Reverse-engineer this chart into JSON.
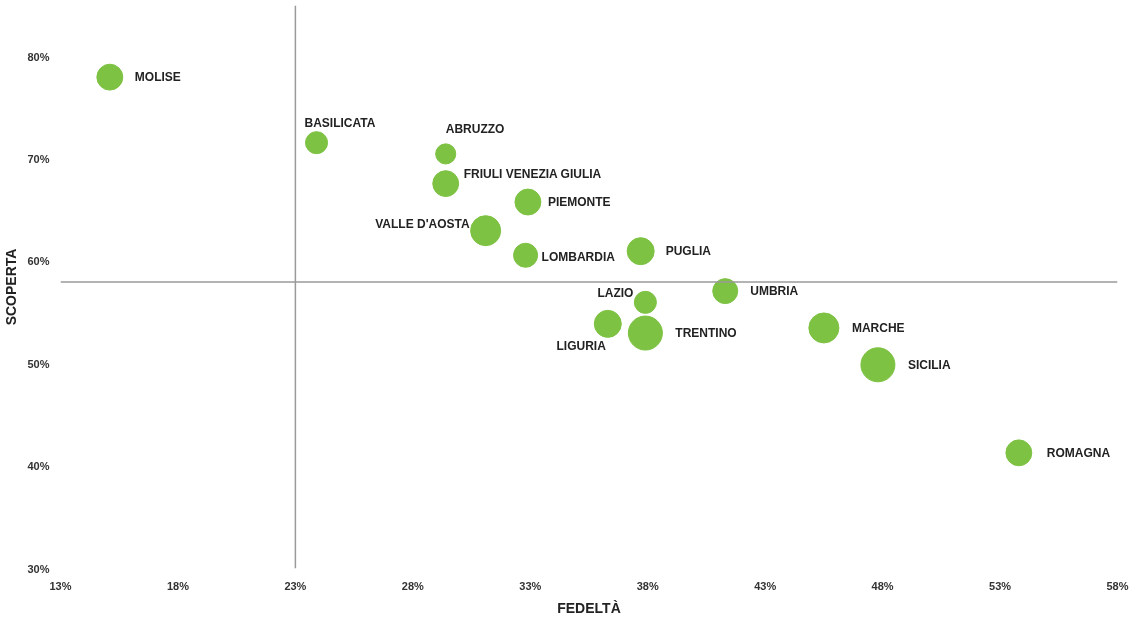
{
  "chart_data": {
    "type": "bubble",
    "xlabel": "FEDELTÀ",
    "ylabel": "SCOPERTA",
    "x": [
      15.1,
      23.9,
      29.4,
      29.4,
      32.9,
      31.1,
      32.8,
      37.7,
      37.9,
      36.3,
      37.9,
      41.3,
      45.5,
      47.8,
      53.8
    ],
    "series": [
      {
        "color": "#7dc242",
        "values": [
          78.0,
          71.6,
          70.5,
          67.6,
          65.8,
          63.0,
          60.6,
          61.0,
          56.0,
          53.9,
          53.0,
          57.1,
          53.5,
          49.9,
          41.3
        ],
        "sizes": [
          0.58,
          0.42,
          0.35,
          0.58,
          0.58,
          0.78,
          0.5,
          0.63,
          0.42,
          0.63,
          1,
          0.54,
          0.78,
          1,
          0.58
        ]
      }
    ],
    "annotations": [
      {
        "text": "MOLISE",
        "x": 15.1,
        "y": 78.0
      },
      {
        "text": "BASILICATA",
        "x": 23.9,
        "y": 71.6
      },
      {
        "text": "ABRUZZO",
        "x": 29.4,
        "y": 70.5
      },
      {
        "text": "FRIULI VENEZIA GIULIA",
        "x": 29.4,
        "y": 67.6
      },
      {
        "text": "PIEMONTE",
        "x": 32.9,
        "y": 65.8
      },
      {
        "text": "VALLE D'AOSTA",
        "x": 31.1,
        "y": 63.0
      },
      {
        "text": "LOMBARDIA",
        "x": 32.8,
        "y": 60.6
      },
      {
        "text": "PUGLIA",
        "x": 37.7,
        "y": 61.0
      },
      {
        "text": "LAZIO",
        "x": 37.9,
        "y": 56.0
      },
      {
        "text": "LIGURIA",
        "x": 36.3,
        "y": 53.9
      },
      {
        "text": "TRENTINO",
        "x": 37.9,
        "y": 53.0
      },
      {
        "text": "UMBRIA",
        "x": 41.3,
        "y": 57.1
      },
      {
        "text": "MARCHE",
        "x": 45.5,
        "y": 53.5
      },
      {
        "text": "SICILIA",
        "x": 47.8,
        "y": 49.9
      },
      {
        "text": "ROMAGNA",
        "x": 53.8,
        "y": 41.3
      }
    ],
    "ref_lines": [
      {
        "axis": "x",
        "value": 23,
        "color": "#9a9a9a"
      },
      {
        "axis": "y",
        "value": 58,
        "color": "#9a9a9a"
      }
    ],
    "xlim": [
      13,
      58
    ],
    "ylim": [
      30,
      85
    ],
    "xticks": [
      {
        "value": 13,
        "label": "13%"
      },
      {
        "value": 18,
        "label": "18%"
      },
      {
        "value": 23,
        "label": "23%"
      },
      {
        "value": 28,
        "label": "28%"
      },
      {
        "value": 33,
        "label": "33%"
      },
      {
        "value": 38,
        "label": "38%"
      },
      {
        "value": 43,
        "label": "43%"
      },
      {
        "value": 48,
        "label": "48%"
      },
      {
        "value": 53,
        "label": "53%"
      },
      {
        "value": 58,
        "label": "58%"
      }
    ],
    "yticks": [
      {
        "value": 30,
        "label": "30%"
      },
      {
        "value": 40,
        "label": "40%"
      },
      {
        "value": 50,
        "label": "50%"
      },
      {
        "value": 60,
        "label": "60%"
      },
      {
        "value": 70,
        "label": "70%"
      },
      {
        "value": 80,
        "label": "80%"
      }
    ],
    "grid": false,
    "marker": "circle"
  }
}
